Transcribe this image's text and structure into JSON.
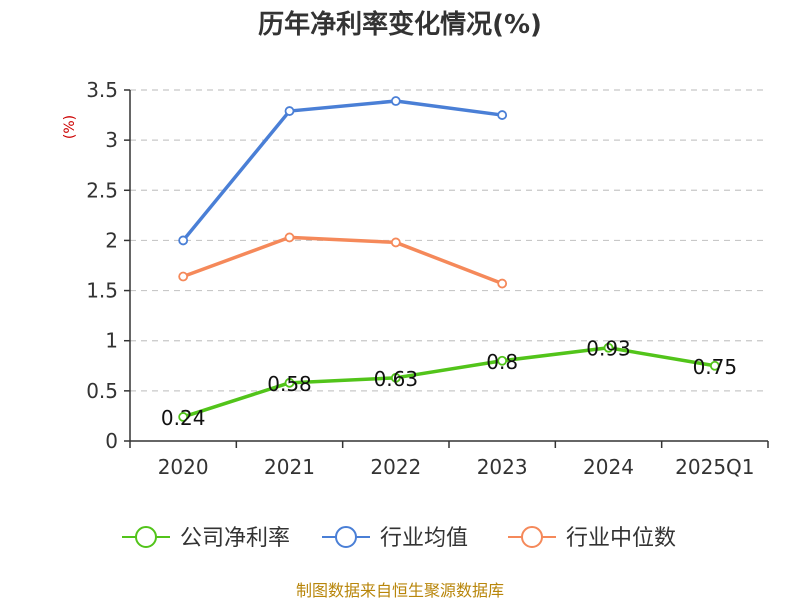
{
  "chart_data": {
    "type": "line",
    "title": "历年净利率变化情况(%)",
    "ylabel": "(%)",
    "categories": [
      "2020",
      "2021",
      "2022",
      "2023",
      "2024",
      "2025Q1"
    ],
    "ylim": [
      0,
      3.5
    ],
    "yticks": [
      "0",
      "0.5",
      "1",
      "1.5",
      "2",
      "2.5",
      "3",
      "3.5"
    ],
    "grid": true,
    "legend_position": "bottom",
    "series": [
      {
        "name": "公司净利率",
        "color": "#52c41a",
        "values": [
          0.24,
          0.58,
          0.63,
          0.8,
          0.93,
          0.75
        ],
        "labels": [
          "0.24",
          "0.58",
          "0.63",
          "0.8",
          "0.93",
          "0.75"
        ]
      },
      {
        "name": "行业均值",
        "color": "#4a7fd6",
        "values": [
          2.0,
          3.29,
          3.39,
          3.25,
          null,
          null
        ]
      },
      {
        "name": "行业中位数",
        "color": "#f5895a",
        "values": [
          1.64,
          2.03,
          1.98,
          1.57,
          null,
          null
        ]
      }
    ]
  },
  "source": "制图数据来自恒生聚源数据库"
}
